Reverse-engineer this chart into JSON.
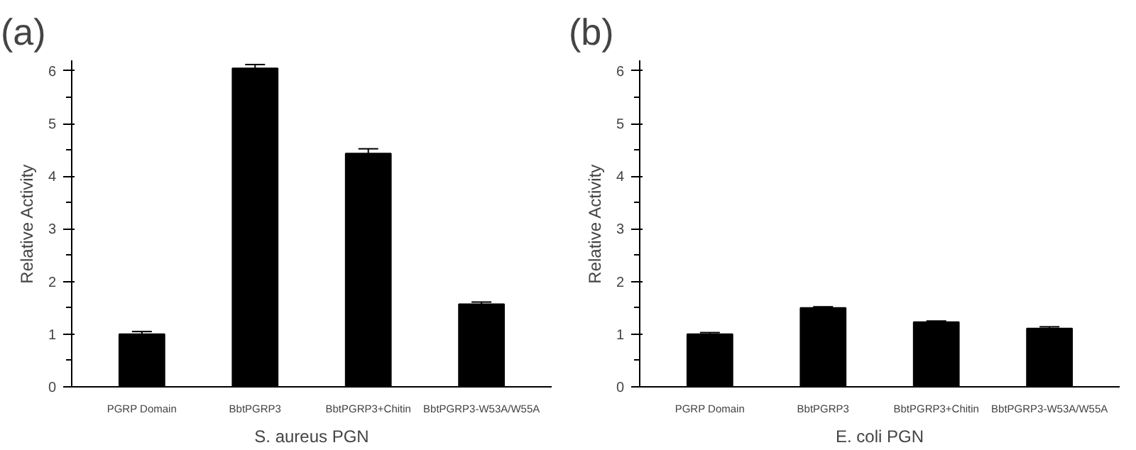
{
  "chart_data": [
    {
      "type": "bar",
      "title": "(a)",
      "xlabel": "S. aureus PGN",
      "ylabel": "Relative Activity",
      "categories": [
        "PGRP Domain",
        "BbtPGRP3",
        "BbtPGRP3+Chitin",
        "BbtPGRP3-W53A/W55A"
      ],
      "values": [
        1.0,
        6.05,
        4.43,
        1.57
      ],
      "errors": [
        0.05,
        0.07,
        0.09,
        0.04
      ],
      "color": "#000000",
      "ylim": [
        0,
        6.2
      ],
      "yticks": [
        0,
        1,
        2,
        3,
        4,
        5,
        6
      ],
      "grid": false
    },
    {
      "type": "bar",
      "title": "(b)",
      "xlabel": "E. coli PGN",
      "ylabel": "Relative Activity",
      "categories": [
        "PGRP Domain",
        "BbtPGRP3",
        "BbtPGRP3+Chitin",
        "BbtPGRP3-W53A/W55A"
      ],
      "values": [
        1.0,
        1.5,
        1.23,
        1.11
      ],
      "errors": [
        0.03,
        0.02,
        0.02,
        0.03
      ],
      "color": "#000000",
      "ylim": [
        0,
        6.2
      ],
      "yticks": [
        0,
        1,
        2,
        3,
        4,
        5,
        6
      ],
      "grid": false
    }
  ]
}
